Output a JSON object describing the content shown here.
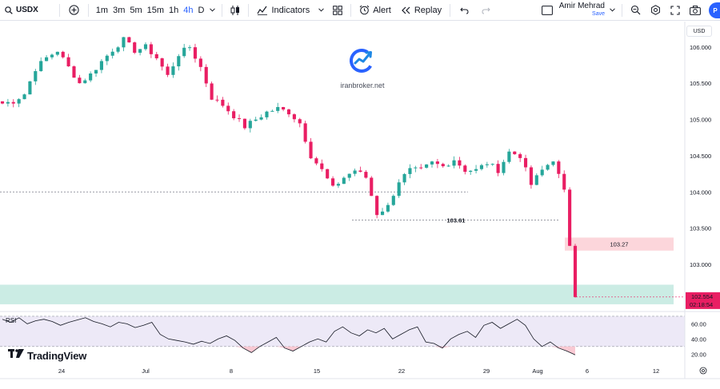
{
  "toolbar": {
    "symbol": "USDX",
    "intervals": [
      "1m",
      "3m",
      "5m",
      "15m",
      "1h",
      "4h",
      "D"
    ],
    "active_interval": "4h",
    "indicators_label": "Indicators",
    "alert_label": "Alert",
    "replay_label": "Replay",
    "user_name": "Amir Mehrad",
    "save_label": "Save",
    "avatar_letter": "P"
  },
  "currency_badge": "USD",
  "watermark": {
    "text": "iranbroker.net"
  },
  "branding": {
    "text": "TradingView"
  },
  "colors": {
    "up": "#26a69a",
    "down": "#ef5350",
    "down_wick": "#e91e63",
    "current_price_bg": "#e91e63",
    "zone_green": "#c8ebe3",
    "zone_red": "#fcd4d9",
    "rsi_band": "#ede9f7",
    "accent": "#2962ff"
  },
  "chart_data": [
    {
      "type": "candlestick",
      "symbol": "USDX",
      "interval": "4h",
      "ylim": [
        102.35,
        106.35
      ],
      "y_ticks": [
        "106.000",
        "105.500",
        "105.000",
        "104.500",
        "104.000",
        "103.500",
        "103.000"
      ],
      "y_tick_values": [
        106.0,
        105.5,
        105.0,
        104.5,
        104.0,
        103.5,
        103.0
      ],
      "x_ticks": [
        "24",
        "Jul",
        "8",
        "15",
        "22",
        "29",
        "Aug",
        "6",
        "12"
      ],
      "close_path": [
        105.22,
        105.25,
        105.35,
        105.7,
        105.85,
        105.95,
        105.72,
        105.5,
        105.62,
        105.8,
        105.96,
        106.1,
        105.95,
        106.0,
        105.85,
        105.6,
        105.9,
        106.0,
        105.72,
        105.3,
        105.2,
        105.05,
        104.9,
        105.0,
        105.1,
        105.15,
        105.1,
        104.95,
        104.5,
        104.3,
        104.05,
        104.2,
        104.3,
        104.2,
        103.7,
        103.8,
        104.15,
        104.3,
        104.3,
        104.4,
        104.35,
        104.45,
        104.3,
        104.3,
        104.4,
        104.3,
        104.55,
        104.5,
        104.1,
        104.3,
        104.45,
        104.0,
        102.55
      ],
      "annotations": [
        {
          "label": "103.61",
          "value": 103.61
        },
        {
          "label": "103.27",
          "value": 103.27
        },
        {
          "level": 104.0
        }
      ],
      "current_price": "102.554",
      "countdown": "02:18:54",
      "zones": [
        {
          "from": 103.19,
          "to": 103.37,
          "color": "red",
          "label": "103.27"
        },
        {
          "from": 102.45,
          "to": 102.72,
          "color": "green"
        }
      ]
    },
    {
      "type": "line",
      "name": "RSI",
      "ylim": [
        15,
        72
      ],
      "y_ticks": [
        "60.00",
        "40.00",
        "20.00"
      ],
      "y_tick_values": [
        60,
        40,
        20
      ],
      "levels": [
        70,
        30
      ],
      "values": [
        66,
        62,
        68,
        60,
        64,
        66,
        63,
        58,
        62,
        65,
        68,
        63,
        60,
        56,
        62,
        60,
        55,
        58,
        62,
        46,
        40,
        38,
        36,
        33,
        37,
        34,
        40,
        44,
        38,
        28,
        22,
        30,
        36,
        42,
        28,
        24,
        30,
        36,
        40,
        36,
        50,
        56,
        48,
        44,
        52,
        48,
        54,
        40,
        46,
        52,
        56,
        36,
        34,
        28,
        40,
        46,
        50,
        42,
        58,
        62,
        54,
        60,
        66,
        58,
        40,
        30,
        36,
        28,
        24,
        19
      ]
    }
  ]
}
